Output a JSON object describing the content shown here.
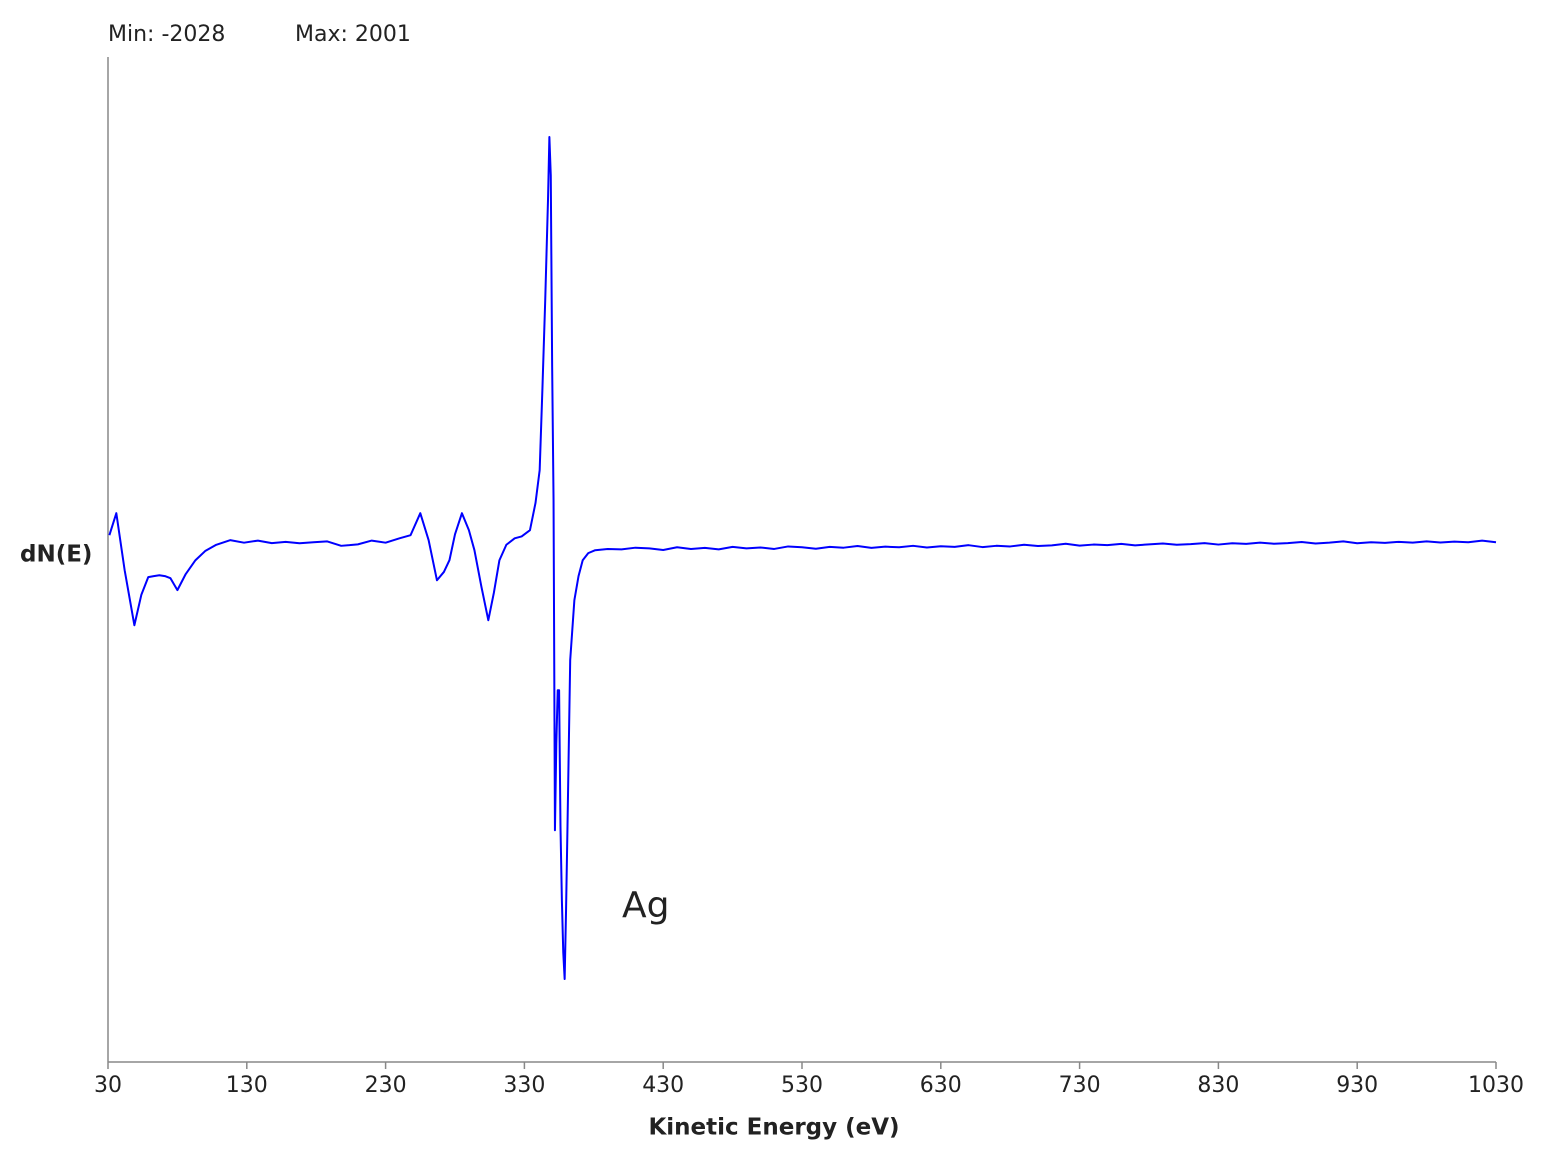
{
  "chart_data": {
    "type": "line",
    "min_label": "Min: -2028",
    "max_label": "Max: 2001",
    "y_label": "dN(E)",
    "x_label": "Kinetic Energy (eV)",
    "annotation": "Ag",
    "color": "#0000ff",
    "xlim": [
      30,
      1030
    ],
    "xticks": [
      30,
      130,
      230,
      330,
      430,
      530,
      630,
      730,
      830,
      930,
      1030
    ],
    "ylim": [
      -2425,
      2384
    ],
    "x": [
      31,
      36,
      42,
      49,
      54,
      59,
      63,
      67,
      71,
      75,
      80,
      86,
      93,
      100,
      108,
      118,
      128,
      138,
      148,
      158,
      168,
      178,
      188,
      198,
      204,
      210,
      220,
      230,
      240,
      248,
      255,
      261,
      267,
      272,
      276,
      280,
      285,
      290,
      294,
      299,
      304,
      308,
      312,
      317,
      323,
      328,
      334,
      338,
      341,
      343,
      345,
      347,
      348,
      349,
      350,
      351,
      352,
      353,
      354,
      355,
      356,
      357,
      358,
      359,
      360,
      361,
      363,
      366,
      369,
      372,
      376,
      381,
      390,
      400,
      410,
      420,
      430,
      440,
      450,
      460,
      470,
      480,
      490,
      500,
      510,
      520,
      530,
      540,
      550,
      560,
      570,
      580,
      590,
      600,
      610,
      620,
      630,
      640,
      650,
      660,
      670,
      680,
      690,
      700,
      710,
      720,
      730,
      740,
      750,
      760,
      770,
      780,
      790,
      800,
      810,
      820,
      830,
      840,
      850,
      860,
      870,
      880,
      890,
      900,
      910,
      920,
      930,
      940,
      950,
      960,
      970,
      980,
      990,
      1000,
      1010,
      1020,
      1030
    ],
    "values": [
      96,
      201,
      -72,
      -335,
      -190,
      -105,
      -100,
      -96,
      -100,
      -110,
      -167,
      -90,
      -24,
      20,
      50,
      72,
      60,
      70,
      58,
      64,
      57,
      62,
      66,
      45,
      48,
      52,
      70,
      60,
      81,
      96,
      201,
      72,
      -120,
      -80,
      -24,
      100,
      201,
      120,
      24,
      -150,
      -311,
      -180,
      -24,
      50,
      81,
      90,
      120,
      250,
      407,
      800,
      1220,
      1700,
      2001,
      1818,
      900,
      263,
      -1316,
      -900,
      -646,
      -646,
      -1300,
      -1651,
      -1900,
      -2028,
      -1700,
      -1316,
      -502,
      -215,
      -100,
      -24,
      10,
      24,
      30,
      28,
      36,
      33,
      25,
      38,
      30,
      35,
      28,
      40,
      33,
      37,
      30,
      42,
      38,
      31,
      40,
      36,
      44,
      35,
      41,
      38,
      45,
      37,
      43,
      40,
      48,
      39,
      45,
      42,
      50,
      44,
      47,
      55,
      46,
      51,
      48,
      54,
      47,
      52,
      56,
      50,
      53,
      58,
      51,
      57,
      54,
      60,
      55,
      58,
      63,
      56,
      60,
      66,
      57,
      62,
      59,
      64,
      60,
      66,
      61,
      65,
      62,
      70,
      62
    ]
  }
}
